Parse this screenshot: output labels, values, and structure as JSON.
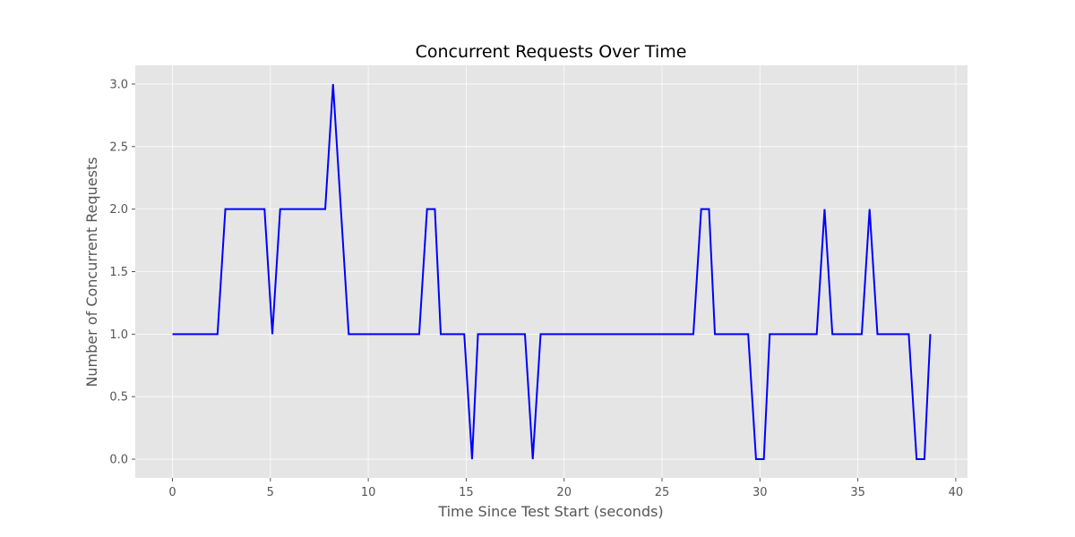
{
  "chart_data": {
    "type": "line",
    "title": "Concurrent Requests Over Time",
    "xlabel": "Time Since Test Start (seconds)",
    "ylabel": "Number of Concurrent Requests",
    "xlim": [
      -1.9,
      40.6
    ],
    "ylim": [
      -0.15,
      3.15
    ],
    "xticks": [
      0,
      5,
      10,
      15,
      20,
      25,
      30,
      35,
      40
    ],
    "xtick_labels": [
      "0",
      "5",
      "10",
      "15",
      "20",
      "25",
      "30",
      "35",
      "40"
    ],
    "yticks": [
      0.0,
      0.5,
      1.0,
      1.5,
      2.0,
      2.5,
      3.0
    ],
    "ytick_labels": [
      "0.0",
      "0.5",
      "1.0",
      "1.5",
      "2.0",
      "2.5",
      "3.0"
    ],
    "grid": true,
    "background_color": "#e5e5e5",
    "series": [
      {
        "color": "#0000ff",
        "points": [
          [
            0.0,
            1
          ],
          [
            2.3,
            1
          ],
          [
            2.7,
            2
          ],
          [
            4.7,
            2
          ],
          [
            5.1,
            1
          ],
          [
            5.5,
            2
          ],
          [
            7.8,
            2
          ],
          [
            8.2,
            3
          ],
          [
            9.0,
            1
          ],
          [
            12.6,
            1
          ],
          [
            13.0,
            2
          ],
          [
            13.4,
            2
          ],
          [
            13.7,
            1
          ],
          [
            14.9,
            1
          ],
          [
            15.3,
            0
          ],
          [
            15.6,
            1
          ],
          [
            18.0,
            1
          ],
          [
            18.4,
            0
          ],
          [
            18.8,
            1
          ],
          [
            26.6,
            1
          ],
          [
            27.0,
            2
          ],
          [
            27.4,
            2
          ],
          [
            27.7,
            1
          ],
          [
            29.4,
            1
          ],
          [
            29.8,
            0
          ],
          [
            30.2,
            0
          ],
          [
            30.5,
            1
          ],
          [
            32.9,
            1
          ],
          [
            33.3,
            2
          ],
          [
            33.7,
            1
          ],
          [
            35.2,
            1
          ],
          [
            35.6,
            2
          ],
          [
            36.0,
            1
          ],
          [
            37.6,
            1
          ],
          [
            38.0,
            0
          ],
          [
            38.4,
            0
          ],
          [
            38.7,
            1
          ]
        ]
      }
    ]
  }
}
